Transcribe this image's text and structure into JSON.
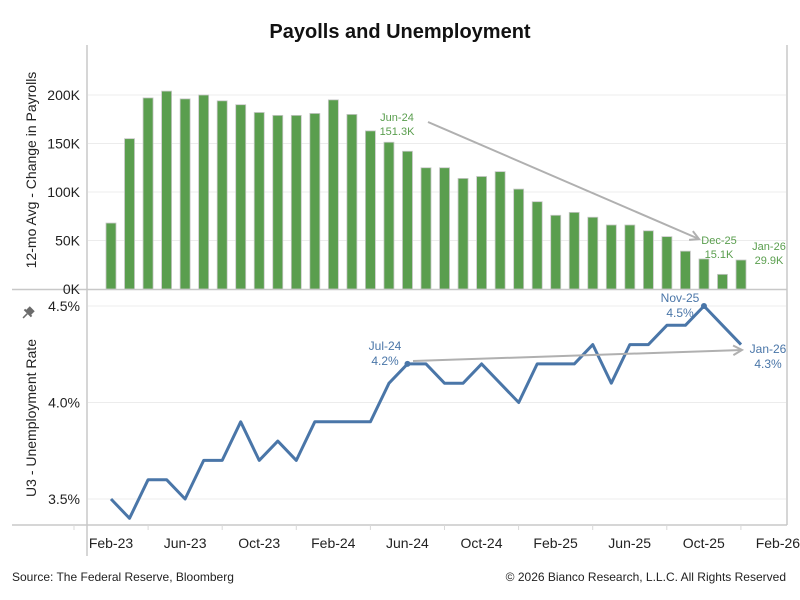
{
  "colors": {
    "payrolls": "#5a9e4e",
    "unemployment": "#4a76a8",
    "arrow": "#b0b0b0",
    "grid": "#ececec",
    "axis": "#c8c8c8",
    "pin": "#6b6b6b"
  },
  "footer": {
    "source": "Source: The Federal Reserve, Bloomberg",
    "copyright": "© 2026 Bianco Research, L.L.C. All Rights Reserved"
  },
  "chart_data": [
    {
      "type": "bar",
      "title": "Payolls and Unemployment",
      "ylabel": "12-mo Avg - Change in Payrolls",
      "ylim": [
        0,
        200
      ],
      "yticks": [
        "0K",
        "50K",
        "100K",
        "150K",
        "200K"
      ],
      "ytick_values": [
        0,
        50,
        100,
        150,
        200
      ],
      "grid": true,
      "x": [
        "Mar-23",
        "Apr-23",
        "May-23",
        "Jun-23",
        "Jul-23",
        "Aug-23",
        "Sep-23",
        "Oct-23",
        "Nov-23",
        "Dec-23",
        "Jan-24",
        "Feb-24",
        "Mar-24",
        "Apr-24",
        "May-24",
        "Jun-24",
        "Jul-24",
        "Aug-24",
        "Sep-24",
        "Oct-24",
        "Nov-24",
        "Dec-24",
        "Jan-25",
        "Feb-25",
        "Mar-25",
        "Apr-25",
        "May-25",
        "Jun-25",
        "Jul-25",
        "Aug-25",
        "Sep-25",
        "Oct-25",
        "Nov-25",
        "Dec-25",
        "Jan-26"
      ],
      "values": [
        68,
        155,
        197,
        204,
        196,
        200,
        194,
        190,
        182,
        179,
        179,
        181,
        195,
        180,
        163,
        151.3,
        142,
        125,
        125,
        114,
        116,
        121,
        103,
        90,
        76,
        79,
        74,
        66,
        66,
        60,
        54,
        39,
        31,
        15.1,
        29.9
      ],
      "annotations": [
        {
          "index": 15,
          "label": "Jun-24",
          "value": "151.3K"
        },
        {
          "index": 33,
          "label": "Dec-25",
          "value": "15.1K"
        },
        {
          "index": 34,
          "label": "Jan-26",
          "value": "29.9K"
        }
      ],
      "trend_arrow": {
        "from": "Jun-24",
        "to": "Dec-25"
      }
    },
    {
      "type": "line",
      "ylabel": "U3 - Unemployment Rate",
      "ylim": [
        3.5,
        4.5
      ],
      "yticks": [
        "3.5%",
        "4.0%",
        "4.5%"
      ],
      "ytick_values": [
        3.5,
        4.0,
        4.5
      ],
      "grid": true,
      "xticks": [
        "Feb-23",
        "Jun-23",
        "Oct-23",
        "Feb-24",
        "Jun-24",
        "Oct-24",
        "Feb-25",
        "Jun-25",
        "Oct-25",
        "Feb-26"
      ],
      "x": [
        "Mar-23",
        "Apr-23",
        "May-23",
        "Jun-23",
        "Jul-23",
        "Aug-23",
        "Sep-23",
        "Oct-23",
        "Nov-23",
        "Dec-23",
        "Jan-24",
        "Feb-24",
        "Mar-24",
        "Apr-24",
        "May-24",
        "Jun-24",
        "Jul-24",
        "Aug-24",
        "Sep-24",
        "Oct-24",
        "Nov-24",
        "Dec-24",
        "Jan-25",
        "Feb-25",
        "Mar-25",
        "Apr-25",
        "May-25",
        "Jun-25",
        "Jul-25",
        "Aug-25",
        "Sep-25",
        "Oct-25",
        "Nov-25",
        "Dec-25",
        "Jan-26"
      ],
      "values": [
        3.5,
        3.4,
        3.6,
        3.6,
        3.5,
        3.7,
        3.7,
        3.9,
        3.7,
        3.8,
        3.7,
        3.9,
        3.9,
        3.9,
        3.9,
        4.1,
        4.2,
        4.2,
        4.1,
        4.1,
        4.2,
        4.1,
        4.0,
        4.2,
        4.2,
        4.2,
        4.3,
        4.1,
        4.3,
        4.3,
        4.4,
        4.4,
        4.5,
        4.4,
        4.3
      ],
      "annotations": [
        {
          "index": 16,
          "label": "Jul-24",
          "value": "4.2%"
        },
        {
          "index": 32,
          "label": "Nov-25",
          "value": "4.5%"
        },
        {
          "index": 34,
          "label": "Jan-26",
          "value": "4.3%"
        }
      ],
      "trend_arrow": {
        "from": "Jul-24",
        "to": "Jan-26"
      }
    }
  ]
}
